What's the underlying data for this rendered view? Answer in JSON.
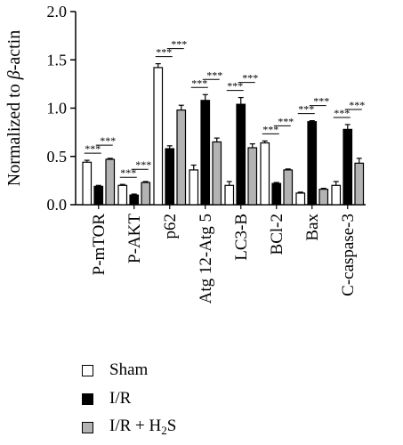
{
  "chart_data": {
    "type": "bar",
    "ylabel": "Normalized to β-actin",
    "ylim": [
      0,
      2.0
    ],
    "yticks": [
      "0.0",
      "0.5",
      "1.0",
      "1.5",
      "2.0"
    ],
    "categories": [
      "P-mTOR",
      "P-AKT",
      "p62",
      "Atg 12-Atg 5",
      "LC3-B",
      "BCl-2",
      "Bax",
      "C-caspase-3"
    ],
    "series": [
      {
        "name": "Sham",
        "color": "#ffffff",
        "values": [
          0.44,
          0.2,
          1.42,
          0.36,
          0.2,
          0.64,
          0.12,
          0.2
        ],
        "errors": [
          0.02,
          0.01,
          0.04,
          0.05,
          0.04,
          0.02,
          0.01,
          0.04
        ]
      },
      {
        "name": "I/R",
        "color": "#000000",
        "values": [
          0.19,
          0.1,
          0.58,
          1.08,
          1.04,
          0.22,
          0.86,
          0.78
        ],
        "errors": [
          0.01,
          0.01,
          0.03,
          0.06,
          0.07,
          0.01,
          0.01,
          0.05
        ]
      },
      {
        "name": "I/R + H2S",
        "color": "#b3b3b3",
        "values": [
          0.47,
          0.23,
          0.98,
          0.65,
          0.59,
          0.36,
          0.16,
          0.43
        ],
        "errors": [
          0.01,
          0.01,
          0.05,
          0.04,
          0.04,
          0.01,
          0.01,
          0.05
        ]
      }
    ],
    "significance_label": "***"
  },
  "legend": {
    "items": [
      {
        "label": "Sham",
        "color": "#ffffff"
      },
      {
        "label": "I/R",
        "color": "#000000"
      },
      {
        "label_main": "I/R + H",
        "label_sub": "2",
        "label_tail": "S",
        "color": "#b3b3b3"
      }
    ]
  }
}
